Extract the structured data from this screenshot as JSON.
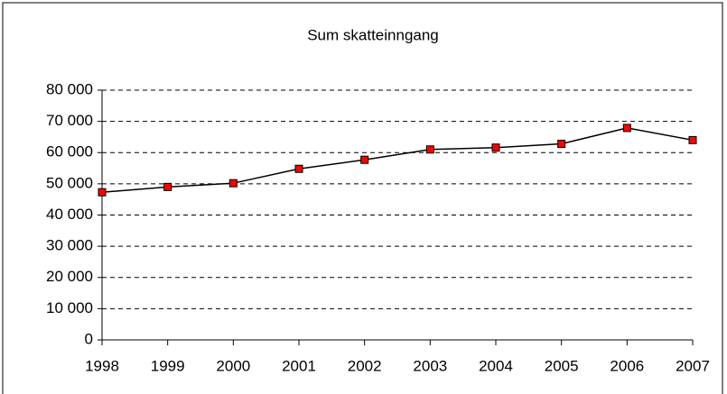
{
  "chart_data": {
    "type": "line",
    "title": "Sum skatteinngang",
    "categories": [
      "1998",
      "1999",
      "2000",
      "2001",
      "2002",
      "2003",
      "2004",
      "2005",
      "2006",
      "2007"
    ],
    "series": [
      {
        "name": null,
        "color": "#000000",
        "marker_color": "#ff0000",
        "values": [
          47300,
          49000,
          50200,
          54800,
          57700,
          61000,
          61600,
          62800,
          67900,
          64000
        ]
      }
    ],
    "ylim": [
      0,
      80000
    ],
    "yticks": [
      0,
      {
        "value": 10000,
        "label": "10 000"
      },
      {
        "value": 20000,
        "label": "20 000"
      },
      {
        "value": 30000,
        "label": "30 000"
      },
      {
        "value": 40000,
        "label": "40 000"
      },
      {
        "value": 50000,
        "label": "50 000"
      },
      {
        "value": 60000,
        "label": "60 000"
      },
      {
        "value": 70000,
        "label": "70 000"
      },
      {
        "value": 80000,
        "label": "80 000"
      }
    ],
    "grid": true
  }
}
